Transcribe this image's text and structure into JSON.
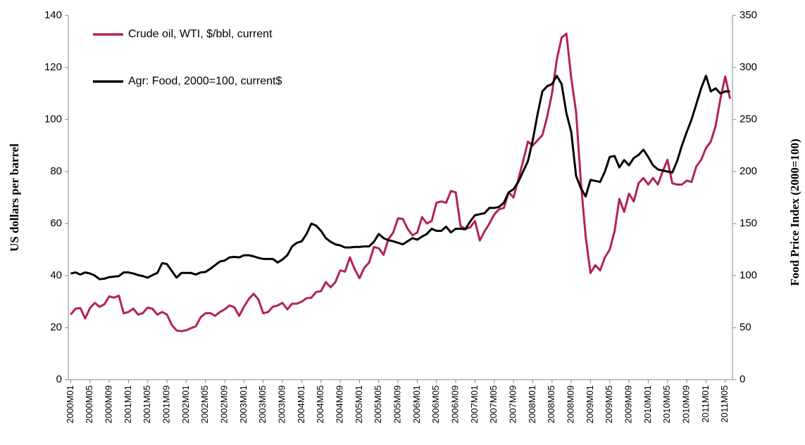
{
  "chart_data": {
    "type": "line",
    "categories": [
      "2000M01",
      null,
      null,
      null,
      "2000M05",
      null,
      null,
      null,
      "2000M09",
      null,
      null,
      null,
      "2001M01",
      null,
      null,
      null,
      "2001M05",
      null,
      null,
      null,
      "2001M09",
      null,
      null,
      null,
      "2002M01",
      null,
      null,
      null,
      "2002M05",
      null,
      null,
      null,
      "2002M09",
      null,
      null,
      null,
      "2003M01",
      null,
      null,
      null,
      "2003M05",
      null,
      null,
      null,
      "2003M09",
      null,
      null,
      null,
      "2004M01",
      null,
      null,
      null,
      "2004M05",
      null,
      null,
      null,
      "2004M09",
      null,
      null,
      null,
      "2005M01",
      null,
      null,
      null,
      "2005M05",
      null,
      null,
      null,
      "2005M09",
      null,
      null,
      null,
      "2006M01",
      null,
      null,
      null,
      "2006M05",
      null,
      null,
      null,
      "2006M09",
      null,
      null,
      null,
      "2007M01",
      null,
      null,
      null,
      "2007M05",
      null,
      null,
      null,
      "2007M09",
      null,
      null,
      null,
      "2008M01",
      null,
      null,
      null,
      "2008M05",
      null,
      null,
      null,
      "2008M09",
      null,
      null,
      null,
      "2009M01",
      null,
      null,
      null,
      "2009M05",
      null,
      null,
      null,
      "2009M09",
      null,
      null,
      null,
      "2010M01",
      null,
      null,
      null,
      "2010M05",
      null,
      null,
      null,
      "2010M09",
      null,
      null,
      null,
      "2011M01",
      null,
      null,
      null,
      "2011M05",
      null
    ],
    "series": [
      {
        "name": "Crude oil, WTI, $/bbl, current",
        "color": "#b3244c",
        "values": [
          25.0,
          27.3,
          27.5,
          23.5,
          27.5,
          29.5,
          28.0,
          29.0,
          32.0,
          31.5,
          32.3,
          25.5,
          26.0,
          27.3,
          25.0,
          25.6,
          27.7,
          27.2,
          25.0,
          26.0,
          25.0,
          21.0,
          18.9,
          18.6,
          19.0,
          19.8,
          20.5,
          24.0,
          25.5,
          25.6,
          24.5,
          26.0,
          27.0,
          28.5,
          27.8,
          24.5,
          28.0,
          31.0,
          33.0,
          30.8,
          25.5,
          26.0,
          28.0,
          28.5,
          29.5,
          27.0,
          29.2,
          29.2,
          30.0,
          31.3,
          31.5,
          33.7,
          34.0,
          37.5,
          35.5,
          37.5,
          42.0,
          41.5,
          47.0,
          42.5,
          39.0,
          43.0,
          45.0,
          51.0,
          50.5,
          48.0,
          54.0,
          56.5,
          62.0,
          61.8,
          58.0,
          55.5,
          56.5,
          62.5,
          60.0,
          61.0,
          68.0,
          68.5,
          68.0,
          72.5,
          72.0,
          59.0,
          58.0,
          58.5,
          61.0,
          53.5,
          57.0,
          60.0,
          63.5,
          65.5,
          66.0,
          72.0,
          70.0,
          77.0,
          84.0,
          91.5,
          90.0,
          92.0,
          94.0,
          101.0,
          110.0,
          123.0,
          131.5,
          133.0,
          116.0,
          103.0,
          76.0,
          55.0,
          41.0,
          44.0,
          42.0,
          47.0,
          50.0,
          57.0,
          69.5,
          64.5,
          71.5,
          68.5,
          75.5,
          77.5,
          75.0,
          77.5,
          75.0,
          80.0,
          84.5,
          75.5,
          75.0,
          75.0,
          76.5,
          76.0,
          82.0,
          84.5,
          89.0,
          91.5,
          97.5,
          108.0,
          116.5,
          108.0
        ]
      },
      {
        "name": "Agr: Food, 2000=100, current$",
        "color": "#000000",
        "axis": "y2",
        "values": [
          102,
          103,
          101,
          103,
          102,
          100,
          96.5,
          97,
          98.5,
          99,
          99.5,
          103,
          103,
          102,
          100.5,
          99.5,
          98,
          100.5,
          102.5,
          112,
          111,
          104.5,
          98,
          102.5,
          102.5,
          102.5,
          101,
          103,
          103.5,
          106.5,
          110,
          113.5,
          114.5,
          117.5,
          118,
          117.5,
          119.5,
          119.5,
          118.5,
          117,
          116,
          116,
          116,
          112.5,
          115.5,
          119.5,
          128,
          131.5,
          133,
          140,
          150,
          148,
          143,
          136,
          132.5,
          130,
          129,
          127,
          127,
          127.5,
          127.5,
          128,
          128,
          132.5,
          140,
          136,
          134,
          133,
          131.5,
          130,
          133,
          136,
          134.5,
          137.5,
          140,
          145,
          143,
          143,
          147,
          141.5,
          145,
          145,
          144.5,
          152,
          158,
          159,
          160,
          165,
          165,
          166,
          170,
          180,
          183,
          190,
          200,
          210,
          230,
          255,
          277,
          282,
          284,
          292,
          284,
          256,
          238,
          196,
          184,
          176,
          192,
          191,
          190,
          200,
          214,
          215,
          204,
          211,
          206,
          213,
          216,
          221,
          214,
          206,
          202,
          201,
          200,
          199,
          210,
          225,
          238,
          250,
          265,
          280,
          292,
          277,
          280,
          275,
          277,
          277
        ]
      }
    ],
    "ylim": [
      0,
      140
    ],
    "yticks": [
      0,
      20,
      40,
      60,
      80,
      100,
      120,
      140
    ],
    "y2lim": [
      0,
      350
    ],
    "y2ticks": [
      0,
      50,
      100,
      150,
      200,
      250,
      300,
      350
    ],
    "ylabel": "US dollars per barrel",
    "y2label": "Food Price Index  (2000=100)",
    "legend": "upper left",
    "grid": false
  }
}
